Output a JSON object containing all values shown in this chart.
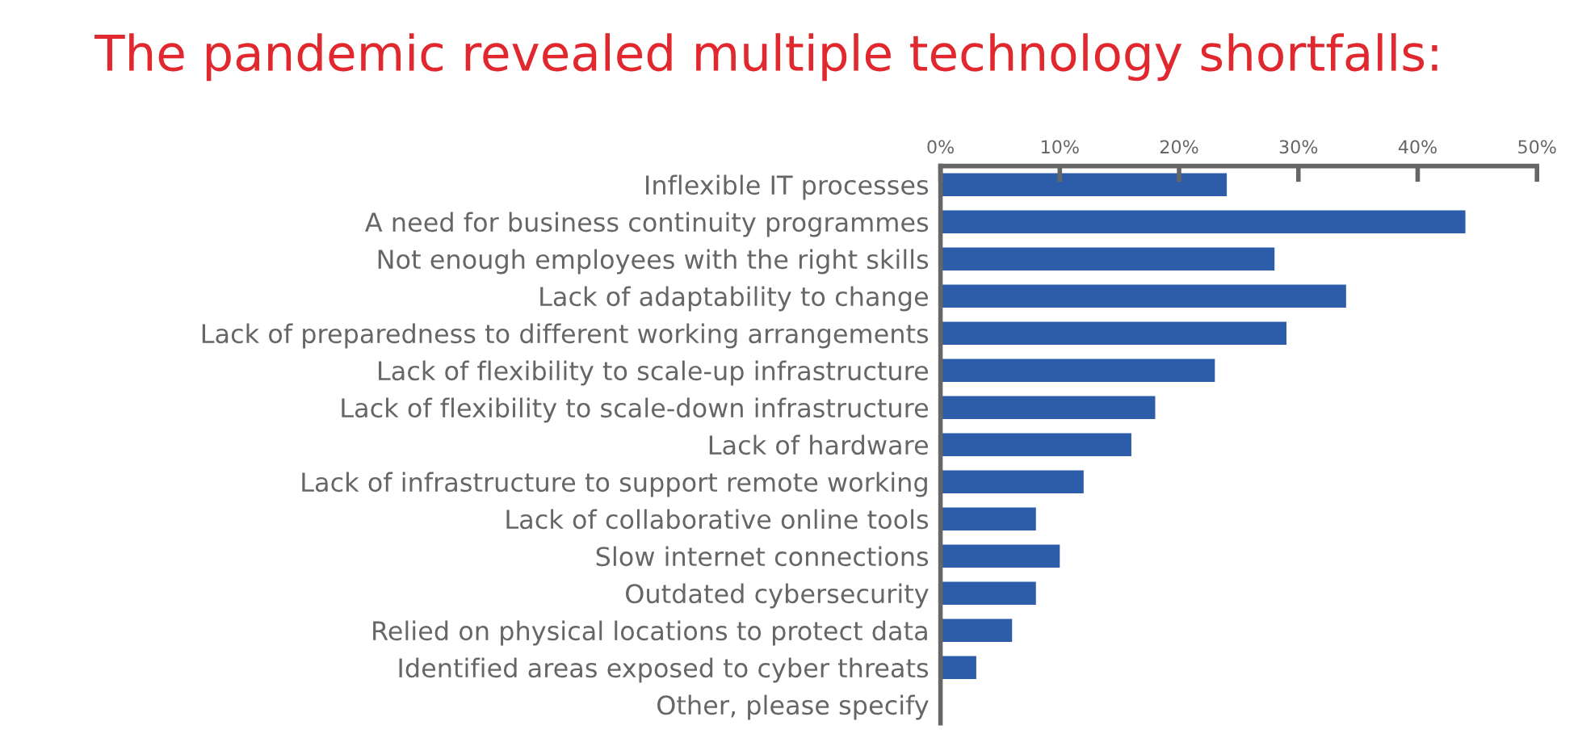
{
  "chart_data": {
    "type": "bar",
    "orientation": "horizontal",
    "title": "The pandemic revealed multiple technology shortfalls:",
    "categories": [
      "Inflexible IT processes",
      "A need for business continuity programmes",
      "Not enough employees with the right skills",
      "Lack of adaptability to change",
      "Lack of preparedness to different working arrangements",
      "Lack of flexibility to scale-up infrastructure",
      "Lack of flexibility to scale-down infrastructure",
      "Lack of hardware",
      "Lack of infrastructure to support remote working",
      "Lack of collaborative online tools",
      "Slow internet connections",
      "Outdated cybersecurity",
      "Relied on physical locations to protect data",
      "Identified areas exposed to cyber threats",
      "Other, please specify"
    ],
    "series": [
      {
        "color": "#2d5da8",
        "values": [
          24,
          44,
          28,
          34,
          29,
          23,
          18,
          16,
          12,
          8,
          10,
          8,
          6,
          3,
          null
        ]
      }
    ],
    "xlim": [
      0,
      50
    ],
    "xticks": [
      {
        "value": 0,
        "label": "0%"
      },
      {
        "value": 10,
        "label": "10%"
      },
      {
        "value": 20,
        "label": "20%"
      },
      {
        "value": 30,
        "label": "30%"
      },
      {
        "value": 40,
        "label": "40%"
      },
      {
        "value": 50,
        "label": "50%"
      }
    ],
    "grid": false,
    "legend": false
  }
}
